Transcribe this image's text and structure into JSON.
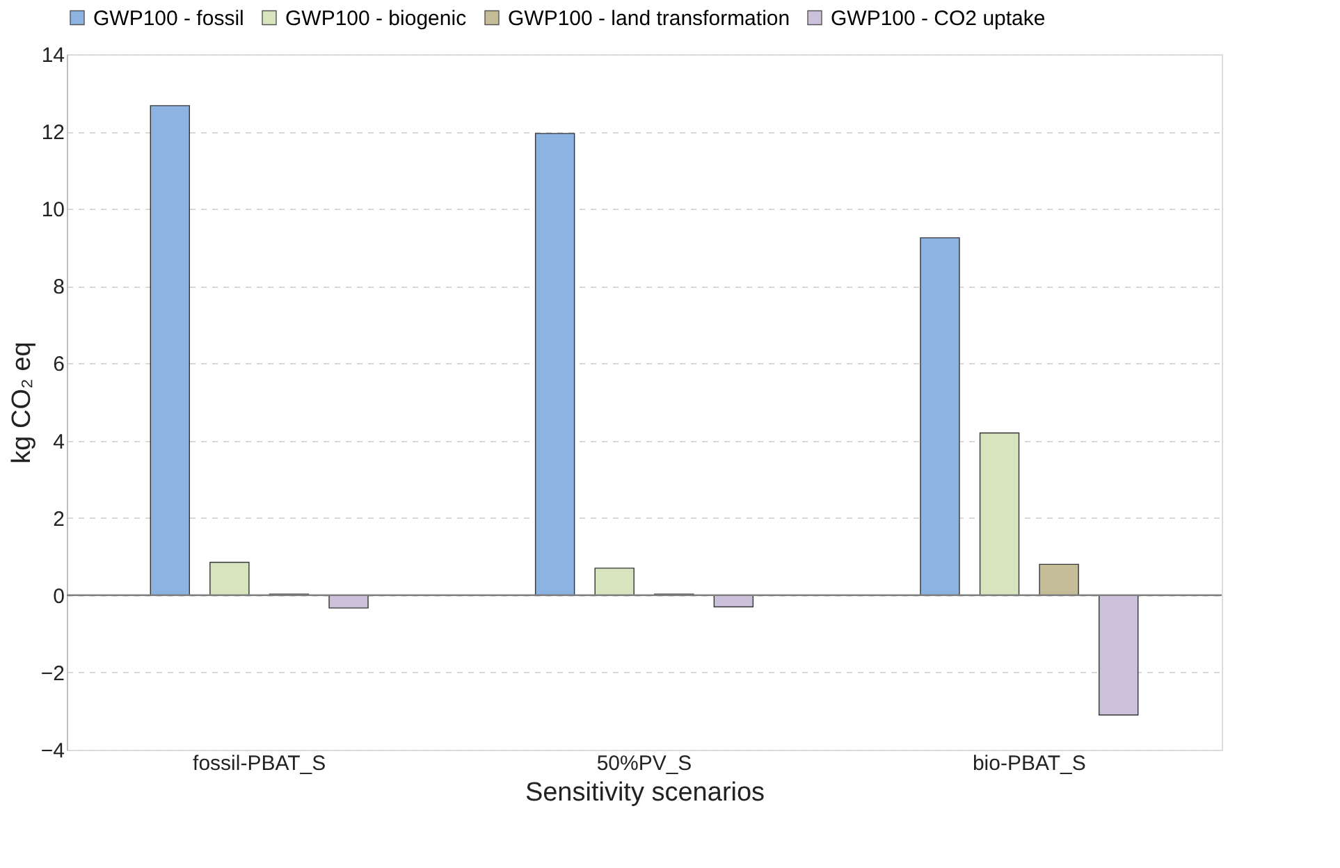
{
  "chart_data": {
    "type": "bar",
    "xlabel": "Sensitivity scenarios",
    "ylabel": "kg CO₂ eq",
    "categories": [
      "fossil-PBAT_S",
      "50%PV_S",
      "bio-PBAT_S"
    ],
    "series": [
      {
        "name": "GWP100 - fossil",
        "color": "#8db3e2",
        "values": [
          12.67,
          11.95,
          9.25
        ]
      },
      {
        "name": "GWP100 - biogenic",
        "color": "#d7e4bd",
        "values": [
          0.85,
          0.7,
          4.2
        ]
      },
      {
        "name": "GWP100 - land transformation",
        "color": "#c4bd97",
        "values": [
          0.03,
          0.03,
          0.8
        ]
      },
      {
        "name": "GWP100 - CO2 uptake",
        "color": "#ccc1da",
        "values": [
          -0.33,
          -0.3,
          -3.1
        ]
      }
    ],
    "ylim": [
      -4,
      14
    ],
    "yticks": [
      -4,
      -2,
      0,
      2,
      4,
      6,
      8,
      10,
      12,
      14
    ],
    "ref_lines": [
      {
        "axis": "y",
        "value": 0,
        "color": "#808080"
      }
    ],
    "grid": "y",
    "legend": "top"
  }
}
